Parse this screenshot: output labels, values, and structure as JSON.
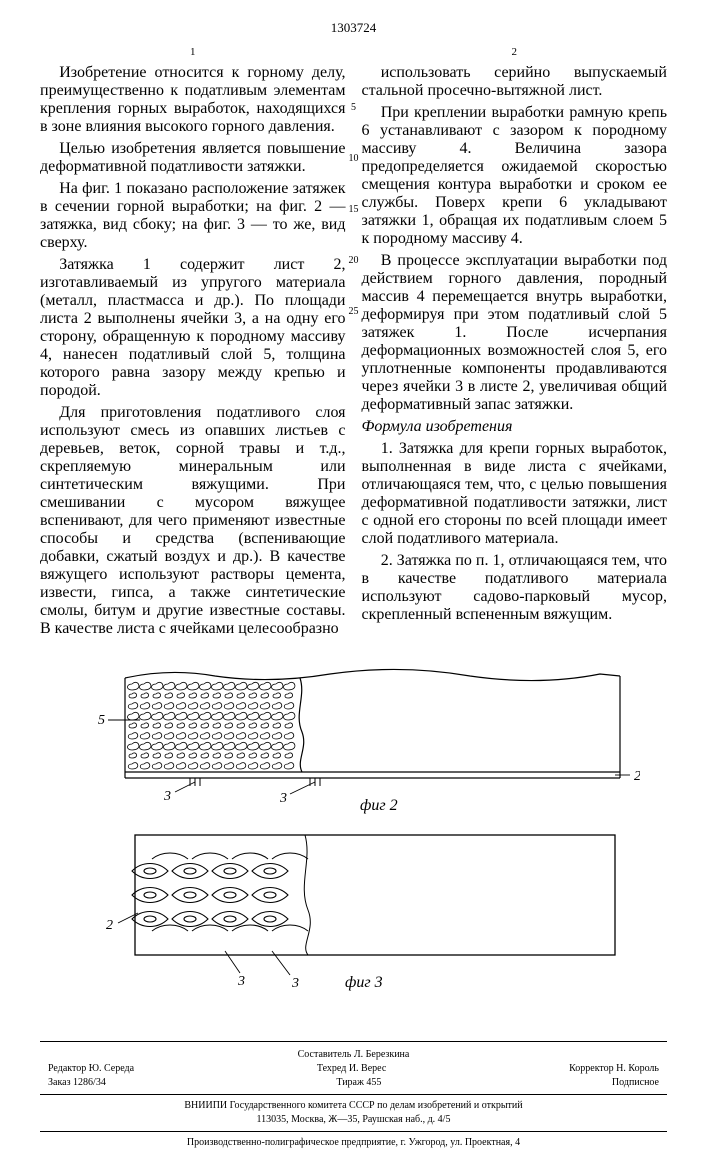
{
  "doc_number": "1303724",
  "page_left": "1",
  "page_right": "2",
  "margin_marks": [
    "5",
    "10",
    "15",
    "20",
    "25"
  ],
  "col_left": [
    "Изобретение относится к горному делу, преимущественно к податливым элементам крепления горных выработок, находящихся в зоне влияния высокого горного давления.",
    "Целью изобретения является повышение деформативной податливости затяжки.",
    "На фиг. 1 показано расположение затяжек в сечении горной выработки; на фиг. 2 — затяжка, вид сбоку; на фиг. 3 — то же, вид сверху.",
    "Затяжка 1 содержит лист 2, изготавливаемый из упругого материала (металл, пластмасса и др.). По площади листа 2 выполнены ячейки 3, а на одну его сторону, обращенную к породному массиву 4, нанесен податливый слой 5, толщина которого равна зазору между крепью и породой.",
    "Для приготовления податливого слоя используют смесь из опавших листьев с деревьев, веток, сорной травы и т.д., скрепляемую минеральным или синтетическим вяжущими. При смешивании с мусором вяжущее вспенивают, для чего применяют известные способы и средства (вспенивающие добавки, сжатый воздух и др.). В качестве вяжущего используют растворы цемента, извести, гипса, а также синтетические смолы, битум и другие известные составы. В качестве листа с ячейками целесообразно"
  ],
  "col_right_pre": [
    "использовать серийно выпускаемый стальной просечно-вытяжной лист.",
    "При креплении выработки рамную крепь 6 устанавливают с зазором к породному массиву 4. Величина зазора предопределяется ожидаемой скоростью смещения контура выработки и сроком ее службы. Поверх крепи 6 укладывают затяжки 1, обращая их податливым слоем 5 к породному массиву 4.",
    "В процессе эксплуатации выработки под действием горного давления, породный массив 4 перемещается внутрь выработки, деформируя при этом податливый слой 5 затяжек 1. После исчерпания деформационных возможностей слоя 5, его уплотненные компоненты продавливаются через ячейки 3 в листе 2, увеличивая общий деформативный запас затяжки."
  ],
  "formula_title": "Формула изобретения",
  "col_right_claims": [
    "1. Затяжка для крепи горных выработок, выполненная в виде листа с ячейками, отличающаяся тем, что, с целью повышения деформативной податливости затяжки, лист с одной его стороны по всей площади имеет слой податливого материала.",
    "2. Затяжка по п. 1, отличающаяся тем, что в качестве податливого материала используют садово-парковый мусор, скрепленный вспененным вяжущим."
  ],
  "fig2_label": "фиг 2",
  "fig3_label": "фиг 3",
  "fig2_refs": {
    "r5": "5",
    "r3a": "3",
    "r3b": "3",
    "r2": "2"
  },
  "fig3_refs": {
    "r2": "2",
    "r3a": "3",
    "r3b": "3"
  },
  "footer": {
    "compiler": "Составитель Л. Березкина",
    "editor": "Редактор Ю. Середа",
    "tehred": "Техред И. Верес",
    "corrector": "Корректор Н. Король",
    "order": "Заказ 1286/34",
    "tirage": "Тираж 455",
    "subscr": "Подписное",
    "org": "ВНИИПИ Государственного комитета СССР по делам изобретений и открытий",
    "addr": "113035, Москва, Ж—35, Раушская наб., д. 4/5",
    "print": "Производственно-полиграфическое предприятие, г. Ужгород, ул. Проектная, 4"
  },
  "style": {
    "font_body_pt": 11.3,
    "font_footer_pt": 10,
    "stroke": "#000000",
    "bg": "#ffffff",
    "fig_width": 600,
    "fig2_height": 165,
    "fig3_height": 190
  }
}
